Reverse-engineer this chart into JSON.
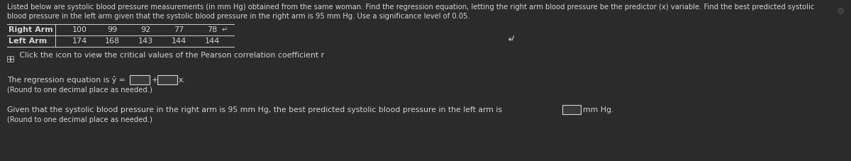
{
  "bg_color": "#2b2b2b",
  "text_color": "#d4d4d4",
  "header_line1": "Listed below are systolic blood pressure measurements (in mm Hg) obtained from the same woman. Find the regression equation, letting the right arm blood pressure be the predictor (x) variable. Find the best predicted systolic",
  "header_line2": "blood pressure in the left arm given that the systolic blood pressure in the right arm is 95 mm Hg. Use a significance level of 0.05.",
  "right_arm_label": "Right Arm",
  "left_arm_label": "Left Arm",
  "right_arm_values": [
    "100",
    "99",
    "92",
    "77",
    "78"
  ],
  "left_arm_values": [
    "174",
    "168",
    "143",
    "144",
    "144"
  ],
  "right_arm_symbol": "↵",
  "click_text": " Click the icon to view the critical values of the Pearson correlation coefficient r",
  "reg_line1": "The regression equation is ŷ =",
  "reg_plus": "+",
  "reg_x": "x.",
  "round_note_1": "(Round to one decimal place as needed.)",
  "pred_line": "Given that the systolic blood pressure in the right arm is 95 mm Hg, the best predicted systolic blood pressure in the left arm is",
  "mmhg": "mm Hg.",
  "round_note_2": "(Round to one decimal place as needed.)",
  "gear_symbol": "⚙",
  "font_size_header": 7.2,
  "font_size_table": 8.0,
  "font_size_body": 7.8,
  "font_size_small": 7.2
}
